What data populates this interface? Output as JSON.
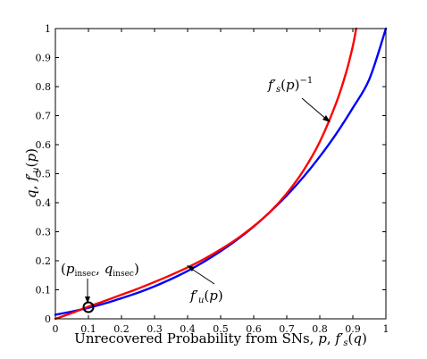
{
  "chart_data": {
    "type": "line",
    "xlabel": "Unrecovered Probability from SNs, p, f′s(q)",
    "ylabel": "q, f′u(p)",
    "xlim": [
      0,
      1
    ],
    "ylim": [
      0,
      1
    ],
    "x_ticks": [
      "0",
      "0.1",
      "0.2",
      "0.3",
      "0.4",
      "0.5",
      "0.6",
      "0.7",
      "0.8",
      "0.9",
      "1"
    ],
    "y_ticks": [
      "0",
      "0.1",
      "0.2",
      "0.3",
      "0.4",
      "0.5",
      "0.6",
      "0.7",
      "0.8",
      "0.9",
      "1"
    ],
    "grid": false,
    "colors": {
      "fu": "#0000ff",
      "fs_inv": "#ff0000"
    },
    "series": [
      {
        "name": "f′u(p)",
        "color": "#0000ff",
        "x": [
          0,
          0.05,
          0.1,
          0.15,
          0.2,
          0.25,
          0.3,
          0.35,
          0.4,
          0.45,
          0.5,
          0.55,
          0.6,
          0.65,
          0.7,
          0.75,
          0.8,
          0.85,
          0.9,
          0.95,
          1.0
        ],
        "y": [
          0.014,
          0.025,
          0.038,
          0.053,
          0.071,
          0.09,
          0.112,
          0.137,
          0.165,
          0.197,
          0.233,
          0.273,
          0.318,
          0.369,
          0.425,
          0.488,
          0.559,
          0.638,
          0.727,
          0.826,
          1.0
        ]
      },
      {
        "name": "f′s(p)⁻¹",
        "color": "#ff0000",
        "x": [
          0,
          0.05,
          0.1,
          0.15,
          0.2,
          0.25,
          0.3,
          0.35,
          0.4,
          0.45,
          0.5,
          0.55,
          0.6,
          0.65,
          0.7,
          0.75,
          0.8,
          0.85,
          0.88,
          0.9,
          0.91
        ],
        "y": [
          0.0,
          0.02,
          0.042,
          0.062,
          0.083,
          0.104,
          0.127,
          0.151,
          0.177,
          0.206,
          0.239,
          0.276,
          0.319,
          0.369,
          0.432,
          0.51,
          0.61,
          0.745,
          0.85,
          0.94,
          1.0
        ]
      }
    ],
    "annotations": [
      {
        "id": "fs_label",
        "text": "f′s(p)⁻¹"
      },
      {
        "id": "fu_label",
        "text": "f′u(p)"
      },
      {
        "id": "intersection_label",
        "text": "(pinsec, qinsec)"
      }
    ],
    "intersection": {
      "x": 0.1,
      "y": 0.04
    }
  }
}
